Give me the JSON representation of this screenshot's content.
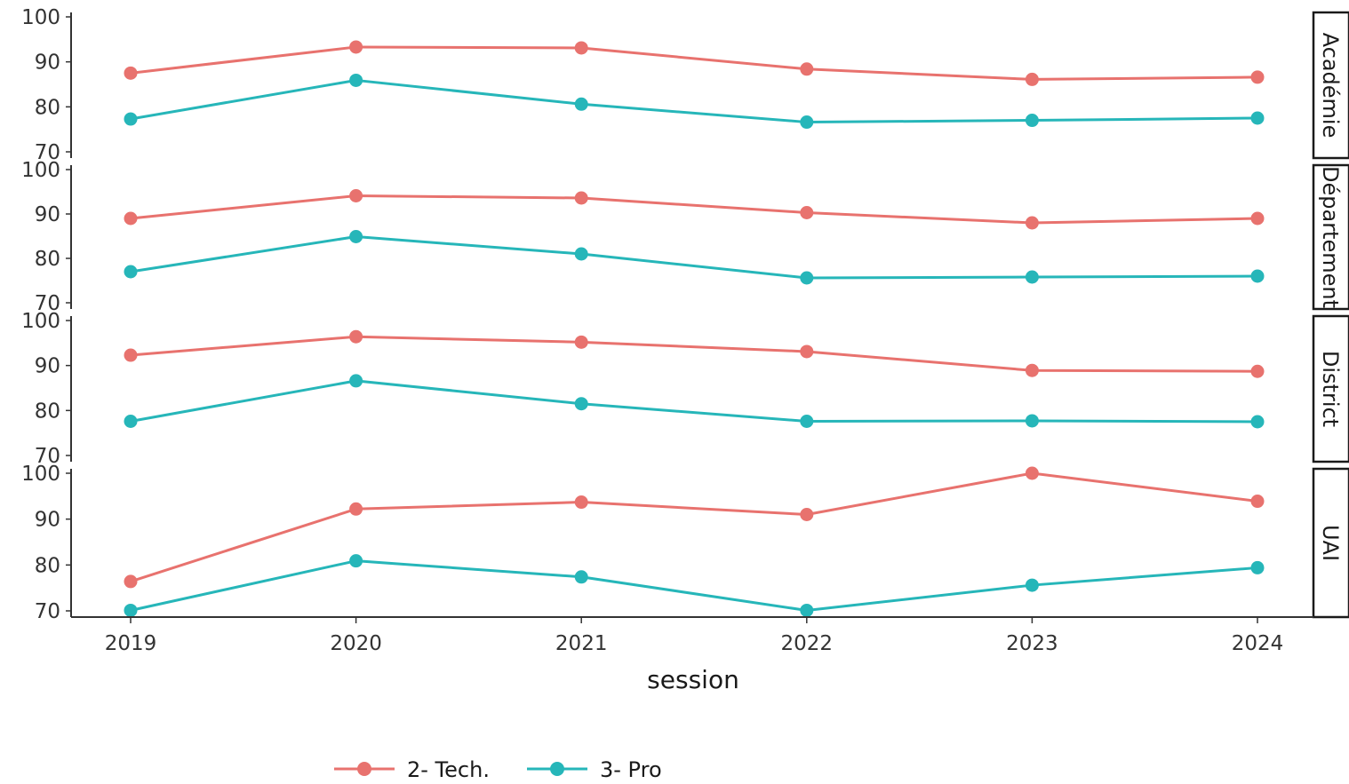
{
  "chart_data": {
    "type": "line",
    "xlabel": "session",
    "x": [
      2019,
      2020,
      2021,
      2022,
      2023,
      2024
    ],
    "x_tick_labels": [
      "2019",
      "2020",
      "2021",
      "2022",
      "2023",
      "2024"
    ],
    "ylim": [
      70,
      100
    ],
    "y_ticks": [
      70,
      80,
      90,
      100
    ],
    "y_tick_labels": [
      "70",
      "80",
      "90",
      "100"
    ],
    "grid": false,
    "legend_position": "bottom",
    "legend": [
      "2- Tech.",
      "3- Pro"
    ],
    "colors": {
      "2- Tech.": "#e8726e",
      "3- Pro": "#26b6b9"
    },
    "panels": [
      {
        "label": "Académie",
        "series": [
          {
            "name": "2- Tech.",
            "values": [
              87.5,
              93.3,
              93.1,
              88.4,
              86.1,
              86.6
            ]
          },
          {
            "name": "3- Pro",
            "values": [
              77.3,
              85.9,
              80.6,
              76.6,
              77.0,
              77.5
            ]
          }
        ]
      },
      {
        "label": "Département",
        "series": [
          {
            "name": "2- Tech.",
            "values": [
              89.0,
              94.1,
              93.6,
              90.3,
              88.0,
              89.0
            ]
          },
          {
            "name": "3- Pro",
            "values": [
              77.0,
              84.9,
              81.0,
              75.6,
              75.8,
              76.0
            ]
          }
        ]
      },
      {
        "label": "District",
        "series": [
          {
            "name": "2- Tech.",
            "values": [
              92.3,
              96.4,
              95.2,
              93.1,
              88.9,
              88.7
            ]
          },
          {
            "name": "3- Pro",
            "values": [
              77.6,
              86.6,
              81.5,
              77.6,
              77.7,
              77.5
            ]
          }
        ]
      },
      {
        "label": "UAI",
        "series": [
          {
            "name": "2- Tech.",
            "values": [
              76.4,
              92.2,
              93.7,
              91.0,
              100.0,
              93.9
            ]
          },
          {
            "name": "3- Pro",
            "values": [
              70.1,
              80.9,
              77.4,
              70.1,
              75.6,
              79.4
            ]
          }
        ]
      }
    ]
  }
}
